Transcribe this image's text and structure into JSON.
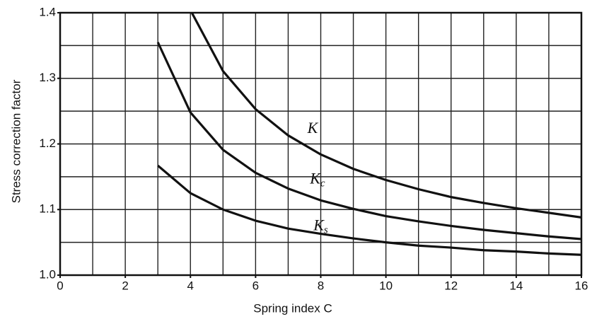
{
  "chart_data": {
    "type": "line",
    "xlabel": "Spring index C",
    "ylabel": "Stress correction factor",
    "x": [
      3,
      4,
      5,
      6,
      7,
      8,
      9,
      10,
      11,
      12,
      13,
      14,
      15,
      16
    ],
    "series": [
      {
        "name": "K",
        "color": "#111111",
        "values": [
          null,
          1.404,
          1.311,
          1.253,
          1.213,
          1.184,
          1.162,
          1.145,
          1.131,
          1.119,
          1.11,
          1.102,
          1.095,
          1.088
        ]
      },
      {
        "name": "Kc",
        "color": "#111111",
        "values": [
          1.355,
          1.248,
          1.191,
          1.156,
          1.132,
          1.114,
          1.101,
          1.09,
          1.082,
          1.075,
          1.069,
          1.064,
          1.059,
          1.055
        ]
      },
      {
        "name": "Ks",
        "color": "#111111",
        "values": [
          1.167,
          1.125,
          1.1,
          1.083,
          1.071,
          1.063,
          1.056,
          1.05,
          1.045,
          1.042,
          1.038,
          1.036,
          1.033,
          1.031
        ]
      }
    ],
    "xlim": [
      0,
      16
    ],
    "ylim": [
      1.0,
      1.4
    ],
    "xticks": [
      0,
      2,
      4,
      6,
      8,
      10,
      12,
      14,
      16
    ],
    "yticks": [
      {
        "value": 1.0,
        "label": "1.0"
      },
      1.1,
      1.2,
      1.3,
      1.4
    ],
    "xgrid": [
      0,
      1,
      2,
      3,
      4,
      5,
      6,
      7,
      8,
      9,
      10,
      11,
      12,
      13,
      14,
      15,
      16
    ],
    "ygrid": [
      1.0,
      1.05,
      1.1,
      1.15,
      1.2,
      1.25,
      1.3,
      1.35,
      1.4
    ],
    "grid": true
  }
}
